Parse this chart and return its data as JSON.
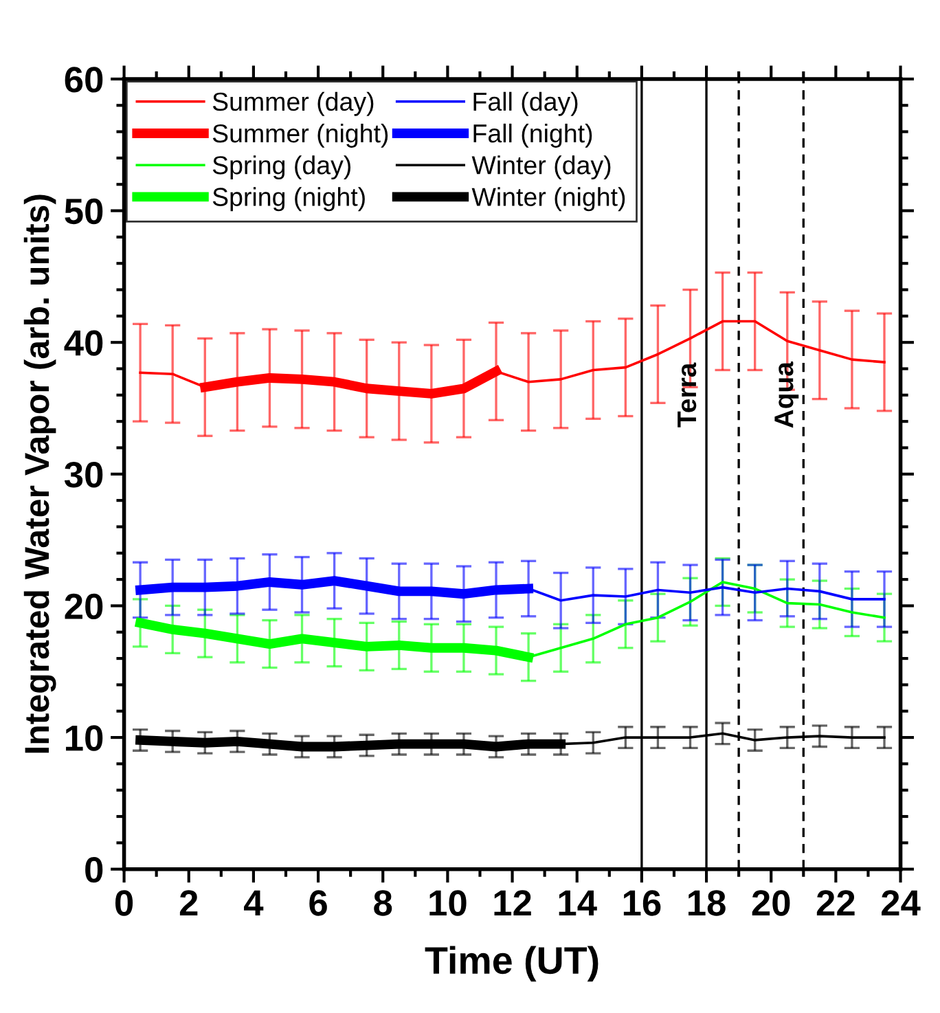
{
  "chart_data": {
    "type": "line",
    "xlabel": "Time (UT)",
    "ylabel": "Integrated Water Vapor (arb. units)",
    "x": [
      0.5,
      1.5,
      2.5,
      3.5,
      4.5,
      5.5,
      6.5,
      7.5,
      8.5,
      9.5,
      10.5,
      11.5,
      12.5,
      13.5,
      14.5,
      15.5,
      16.5,
      17.5,
      18.5,
      19.5,
      20.5,
      21.5,
      22.5,
      23.5
    ],
    "series": [
      {
        "name": "Summer (day)",
        "color": "#ff0000",
        "values": [
          37.7,
          37.6,
          36.6,
          null,
          null,
          null,
          null,
          null,
          null,
          null,
          null,
          37.8,
          37.0,
          37.2,
          37.9,
          38.1,
          39.1,
          40.3,
          41.6,
          41.6,
          40.1,
          39.4,
          38.7,
          38.5
        ],
        "errors": [
          3.7,
          3.7,
          3.7,
          null,
          null,
          null,
          null,
          null,
          null,
          null,
          null,
          3.7,
          3.7,
          3.7,
          3.7,
          3.7,
          3.7,
          3.7,
          3.7,
          3.7,
          3.7,
          3.7,
          3.7,
          3.7
        ]
      },
      {
        "name": "Summer (night)",
        "color": "#ff0000",
        "values": [
          null,
          null,
          36.6,
          37.0,
          37.3,
          37.2,
          37.0,
          36.5,
          36.3,
          36.1,
          36.5,
          37.8,
          null,
          null,
          null,
          null,
          null,
          null,
          null,
          null,
          null,
          null,
          null,
          null
        ],
        "errors": [
          null,
          null,
          null,
          3.7,
          3.7,
          3.7,
          3.7,
          3.7,
          3.7,
          3.7,
          3.7,
          null,
          null,
          null,
          null,
          null,
          null,
          null,
          null,
          null,
          null,
          null,
          null,
          null
        ]
      },
      {
        "name": "Spring (day)",
        "color": "#00ff00",
        "values": [
          null,
          null,
          null,
          null,
          null,
          null,
          null,
          null,
          null,
          null,
          null,
          null,
          16.1,
          16.8,
          17.5,
          18.6,
          19.1,
          20.3,
          21.8,
          21.3,
          20.2,
          20.1,
          19.5,
          19.1
        ],
        "errors": [
          null,
          null,
          null,
          null,
          null,
          null,
          null,
          null,
          null,
          null,
          null,
          null,
          1.8,
          1.8,
          1.8,
          1.8,
          1.8,
          1.8,
          1.8,
          1.8,
          1.8,
          1.8,
          1.8,
          1.8
        ]
      },
      {
        "name": "Spring (night)",
        "color": "#00ff00",
        "values": [
          18.7,
          18.2,
          17.9,
          17.5,
          17.1,
          17.5,
          17.2,
          16.9,
          17.0,
          16.8,
          16.8,
          16.6,
          16.1,
          null,
          null,
          null,
          null,
          null,
          null,
          null,
          null,
          null,
          null,
          null
        ],
        "errors": [
          1.8,
          1.8,
          1.8,
          1.8,
          1.8,
          1.8,
          1.8,
          1.8,
          1.8,
          1.8,
          1.8,
          1.8,
          null,
          null,
          null,
          null,
          null,
          null,
          null,
          null,
          null,
          null,
          null,
          null
        ]
      },
      {
        "name": "Fall (day)",
        "color": "#0000ff",
        "values": [
          null,
          null,
          null,
          null,
          null,
          null,
          null,
          null,
          null,
          null,
          null,
          null,
          21.3,
          20.4,
          20.8,
          20.7,
          21.2,
          21.0,
          21.4,
          21.0,
          21.3,
          21.1,
          20.5,
          20.5
        ],
        "errors": [
          null,
          null,
          null,
          null,
          null,
          null,
          null,
          null,
          null,
          null,
          null,
          null,
          2.1,
          2.1,
          2.1,
          2.1,
          2.1,
          2.1,
          2.1,
          2.1,
          2.1,
          2.1,
          2.1,
          2.1
        ]
      },
      {
        "name": "Fall (night)",
        "color": "#0000ff",
        "values": [
          21.2,
          21.4,
          21.4,
          21.5,
          21.8,
          21.6,
          21.9,
          21.5,
          21.1,
          21.1,
          20.9,
          21.2,
          21.3,
          null,
          null,
          null,
          null,
          null,
          null,
          null,
          null,
          null,
          null,
          null
        ],
        "errors": [
          2.1,
          2.1,
          2.1,
          2.1,
          2.1,
          2.1,
          2.1,
          2.1,
          2.1,
          2.1,
          2.1,
          2.1,
          null,
          null,
          null,
          null,
          null,
          null,
          null,
          null,
          null,
          null,
          null,
          null
        ]
      },
      {
        "name": "Winter (day)",
        "color": "#000000",
        "values": [
          null,
          null,
          null,
          null,
          null,
          null,
          null,
          null,
          null,
          null,
          null,
          null,
          null,
          9.5,
          9.6,
          10.0,
          10.0,
          10.0,
          10.3,
          9.8,
          10.0,
          10.1,
          10.0,
          10.0
        ],
        "errors": [
          null,
          null,
          null,
          null,
          null,
          null,
          null,
          null,
          null,
          null,
          null,
          null,
          null,
          0.8,
          0.8,
          0.8,
          0.8,
          0.8,
          0.8,
          0.8,
          0.8,
          0.8,
          0.8,
          0.8
        ]
      },
      {
        "name": "Winter (night)",
        "color": "#000000",
        "values": [
          9.8,
          9.7,
          9.6,
          9.7,
          9.5,
          9.3,
          9.3,
          9.4,
          9.5,
          9.5,
          9.5,
          9.3,
          9.5,
          9.5,
          null,
          null,
          null,
          null,
          null,
          null,
          null,
          null,
          null,
          null
        ],
        "errors": [
          0.8,
          0.8,
          0.8,
          0.8,
          0.8,
          0.8,
          0.8,
          0.8,
          0.8,
          0.8,
          0.8,
          0.8,
          0.8,
          null,
          null,
          null,
          null,
          null,
          null,
          null,
          null,
          null,
          null,
          null
        ]
      }
    ],
    "ref_lines": [
      {
        "axis": "x",
        "value": 16,
        "color": "#000000"
      },
      {
        "axis": "x",
        "value": 18,
        "label": "Terra",
        "color": "#000000"
      },
      {
        "axis": "x",
        "value": 19,
        "color": "#000000",
        "line_style": "dashed"
      },
      {
        "axis": "x",
        "value": 21,
        "label": "Aqua",
        "color": "#000000",
        "line_style": "dashed"
      }
    ],
    "xlim": [
      0,
      24
    ],
    "xticks": [
      0,
      2,
      4,
      6,
      8,
      10,
      12,
      14,
      16,
      18,
      20,
      22,
      24
    ],
    "ylim": [
      0,
      60
    ],
    "yticks": [
      0,
      10,
      20,
      30,
      40,
      50,
      60
    ],
    "grid": false,
    "legend": "top left",
    "marker": "none"
  }
}
